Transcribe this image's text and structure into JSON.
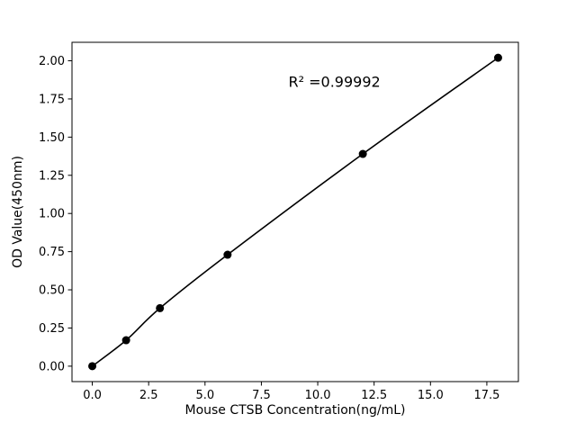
{
  "figure": {
    "background": "#ffffff"
  },
  "chart_data": {
    "type": "scatter",
    "title": "",
    "xlabel": "Mouse CTSB Concentration(ng/mL)",
    "ylabel": "OD Value(450nm)",
    "x": [
      0,
      1.5,
      3,
      6,
      12,
      18
    ],
    "y": [
      0.0,
      0.17,
      0.38,
      0.73,
      1.39,
      2.02
    ],
    "xlim": [
      -0.9,
      18.9
    ],
    "ylim": [
      -0.101,
      2.121
    ],
    "xticks": [
      0.0,
      2.5,
      5.0,
      7.5,
      10.0,
      12.5,
      15.0,
      17.5
    ],
    "xtick_labels": [
      "0.0",
      "2.5",
      "5.0",
      "7.5",
      "10.0",
      "12.5",
      "15.0",
      "17.5"
    ],
    "yticks": [
      0.0,
      0.25,
      0.5,
      0.75,
      1.0,
      1.25,
      1.5,
      1.75,
      2.0
    ],
    "ytick_labels": [
      "0.00",
      "0.25",
      "0.50",
      "0.75",
      "1.00",
      "1.25",
      "1.50",
      "1.75",
      "2.00"
    ],
    "grid": false,
    "legend": "none",
    "line_color": "#000000",
    "marker_color": "#000000",
    "axis_color": "#000000",
    "annotation": {
      "text": "R² =0.99992",
      "x": 8.7,
      "y": 1.83
    }
  }
}
